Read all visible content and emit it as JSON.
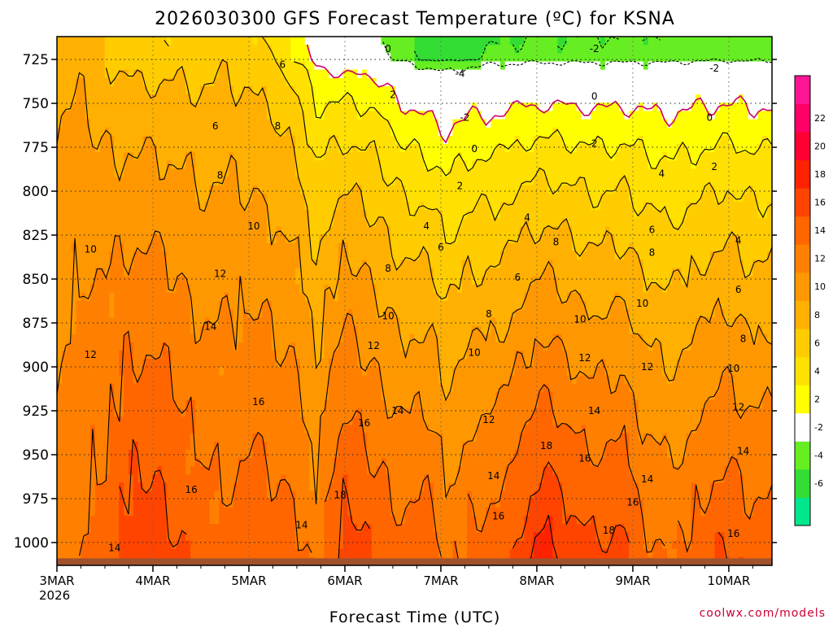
{
  "chart_data": {
    "type": "heatmap",
    "subtype": "filled-contour time-pressure cross-section",
    "title": "2026030300 GFS Forecast Temperature (ºC) for KSNA",
    "xlabel": "Forecast Time (UTC)",
    "ylabel": "",
    "x_ticks": [
      "3MAR",
      "4MAR",
      "5MAR",
      "6MAR",
      "7MAR",
      "8MAR",
      "9MAR",
      "10MAR"
    ],
    "x_tick_year": "2026",
    "x_range_days": [
      0,
      7.45
    ],
    "y_ticks": [
      725,
      750,
      775,
      800,
      825,
      850,
      875,
      900,
      925,
      950,
      975,
      1000
    ],
    "y_range_hpa": [
      712,
      1013
    ],
    "y_inverted": true,
    "colorbar": {
      "levels": [
        -6,
        -4,
        -2,
        2,
        4,
        6,
        8,
        10,
        12,
        14,
        16,
        18,
        20,
        22
      ],
      "labels": [
        "22",
        "20",
        "18",
        "16",
        "14",
        "12",
        "10",
        "8",
        "6",
        "4",
        "2",
        "-2",
        "-4",
        "-6"
      ],
      "colors": [
        "#00e68c",
        "#33dd33",
        "#66ee22",
        "#ffffff",
        "#ffff00",
        "#ffe000",
        "#ffcc00",
        "#ffb000",
        "#ff9800",
        "#ff8000",
        "#ff6600",
        "#ff4400",
        "#ff2200",
        "#ff0033",
        "#ff0066",
        "#ff1493"
      ]
    },
    "surface_color": "#a0522d",
    "profiles": [
      {
        "t": 0.0,
        "t725": 9,
        "t1000": 13,
        "k": 1.3
      },
      {
        "t": 0.25,
        "t725": 9.5,
        "t1000": 14,
        "k": 1.3
      },
      {
        "t": 0.5,
        "t725": 8,
        "t1000": 15,
        "k": 1.3
      },
      {
        "t": 0.75,
        "t725": 7,
        "t1000": 17,
        "k": 1.4
      },
      {
        "t": 1.0,
        "t725": 6.5,
        "t1000": 17,
        "k": 1.5
      },
      {
        "t": 1.25,
        "t725": 7,
        "t1000": 16,
        "k": 1.4
      },
      {
        "t": 1.5,
        "t725": 7,
        "t1000": 15,
        "k": 1.3
      },
      {
        "t": 1.75,
        "t725": 7.5,
        "t1000": 14.5,
        "k": 1.3
      },
      {
        "t": 2.0,
        "t725": 7,
        "t1000": 15.5,
        "k": 1.3
      },
      {
        "t": 2.25,
        "t725": 6,
        "t1000": 15,
        "k": 1.4
      },
      {
        "t": 2.5,
        "t725": 4,
        "t1000": 14.5,
        "k": 1.6
      },
      {
        "t": 2.7,
        "t725": 1,
        "t1000": 13,
        "k": 1.7
      },
      {
        "t": 3.0,
        "t725": -0.5,
        "t1000": 17,
        "k": 1.8
      },
      {
        "t": 3.3,
        "t725": -0.5,
        "t1000": 15.5,
        "k": 1.8
      },
      {
        "t": 3.6,
        "t725": -3,
        "t1000": 14.5,
        "k": 1.9
      },
      {
        "t": 3.9,
        "t725": -4.5,
        "t1000": 15,
        "k": 1.9
      },
      {
        "t": 4.05,
        "t725": -5,
        "t1000": 13,
        "k": 2.0
      },
      {
        "t": 4.3,
        "t725": -4,
        "t1000": 14.5,
        "k": 1.9
      },
      {
        "t": 4.6,
        "t725": -3.5,
        "t1000": 15,
        "k": 1.8
      },
      {
        "t": 4.9,
        "t725": -3,
        "t1000": 17,
        "k": 1.7
      },
      {
        "t": 5.1,
        "t725": -3,
        "t1000": 18.5,
        "k": 1.6
      },
      {
        "t": 5.3,
        "t725": -3,
        "t1000": 17,
        "k": 1.7
      },
      {
        "t": 5.6,
        "t725": -3,
        "t1000": 16,
        "k": 1.7
      },
      {
        "t": 5.9,
        "t725": -3,
        "t1000": 16.5,
        "k": 1.7
      },
      {
        "t": 6.1,
        "t725": -3,
        "t1000": 14.5,
        "k": 1.8
      },
      {
        "t": 6.4,
        "t725": -3,
        "t1000": 13.5,
        "k": 1.8
      },
      {
        "t": 6.7,
        "t725": -2.5,
        "t1000": 15,
        "k": 1.7
      },
      {
        "t": 7.0,
        "t725": -2.5,
        "t1000": 16,
        "k": 1.7
      },
      {
        "t": 7.2,
        "t725": -2.5,
        "t1000": 15,
        "k": 1.7
      },
      {
        "t": 7.45,
        "t725": -2.5,
        "t1000": 15,
        "k": 1.7
      }
    ],
    "contour_labels": [
      {
        "text": "6",
        "t": 2.35,
        "p": 728
      },
      {
        "text": "6",
        "t": 1.65,
        "p": 763
      },
      {
        "text": "8",
        "t": 2.3,
        "p": 763
      },
      {
        "text": "8",
        "t": 1.7,
        "p": 791
      },
      {
        "text": "10",
        "t": 2.05,
        "p": 820
      },
      {
        "text": "10",
        "t": 0.35,
        "p": 833
      },
      {
        "text": "12",
        "t": 1.7,
        "p": 847
      },
      {
        "text": "12",
        "t": 0.35,
        "p": 893
      },
      {
        "text": "14",
        "t": 1.6,
        "p": 877
      },
      {
        "text": "16",
        "t": 2.1,
        "p": 920
      },
      {
        "text": "16",
        "t": 1.4,
        "p": 970
      },
      {
        "text": "14",
        "t": 0.6,
        "p": 1003
      },
      {
        "text": "14",
        "t": 2.55,
        "p": 990
      },
      {
        "text": "0",
        "t": 3.45,
        "p": 719
      },
      {
        "text": "-4",
        "t": 4.2,
        "p": 733
      },
      {
        "text": "-2",
        "t": 4.25,
        "p": 758
      },
      {
        "text": "-2",
        "t": 5.6,
        "p": 719
      },
      {
        "text": "-2",
        "t": 6.85,
        "p": 730
      },
      {
        "text": "0",
        "t": 5.6,
        "p": 746
      },
      {
        "text": "0",
        "t": 6.8,
        "p": 758
      },
      {
        "text": "0",
        "t": 4.35,
        "p": 776
      },
      {
        "text": "2",
        "t": 3.5,
        "p": 745
      },
      {
        "text": "2",
        "t": 4.2,
        "p": 797
      },
      {
        "text": "2",
        "t": 5.6,
        "p": 773
      },
      {
        "text": "2",
        "t": 6.85,
        "p": 786
      },
      {
        "text": "4",
        "t": 3.85,
        "p": 820
      },
      {
        "text": "4",
        "t": 4.9,
        "p": 815
      },
      {
        "text": "4",
        "t": 6.3,
        "p": 790
      },
      {
        "text": "4",
        "t": 7.1,
        "p": 828
      },
      {
        "text": "6",
        "t": 4.0,
        "p": 832
      },
      {
        "text": "6",
        "t": 4.8,
        "p": 849
      },
      {
        "text": "6",
        "t": 6.2,
        "p": 822
      },
      {
        "text": "6",
        "t": 7.1,
        "p": 856
      },
      {
        "text": "8",
        "t": 3.45,
        "p": 844
      },
      {
        "text": "8",
        "t": 4.5,
        "p": 870
      },
      {
        "text": "8",
        "t": 5.2,
        "p": 829
      },
      {
        "text": "8",
        "t": 6.2,
        "p": 835
      },
      {
        "text": "8",
        "t": 7.15,
        "p": 884
      },
      {
        "text": "10",
        "t": 3.45,
        "p": 871
      },
      {
        "text": "10",
        "t": 4.35,
        "p": 892
      },
      {
        "text": "10",
        "t": 5.45,
        "p": 873
      },
      {
        "text": "10",
        "t": 6.1,
        "p": 864
      },
      {
        "text": "10",
        "t": 7.05,
        "p": 901
      },
      {
        "text": "12",
        "t": 3.3,
        "p": 888
      },
      {
        "text": "12",
        "t": 4.5,
        "p": 930
      },
      {
        "text": "12",
        "t": 5.5,
        "p": 895
      },
      {
        "text": "12",
        "t": 6.15,
        "p": 900
      },
      {
        "text": "12",
        "t": 7.1,
        "p": 923
      },
      {
        "text": "14",
        "t": 3.55,
        "p": 925
      },
      {
        "text": "14",
        "t": 4.55,
        "p": 962
      },
      {
        "text": "14",
        "t": 5.6,
        "p": 925
      },
      {
        "text": "14",
        "t": 6.15,
        "p": 964
      },
      {
        "text": "14",
        "t": 7.15,
        "p": 948
      },
      {
        "text": "16",
        "t": 3.2,
        "p": 932
      },
      {
        "text": "16",
        "t": 5.5,
        "p": 952
      },
      {
        "text": "16",
        "t": 4.6,
        "p": 985
      },
      {
        "text": "16",
        "t": 6.0,
        "p": 977
      },
      {
        "text": "16",
        "t": 7.05,
        "p": 995
      },
      {
        "text": "18",
        "t": 5.1,
        "p": 945
      },
      {
        "text": "18",
        "t": 2.95,
        "p": 973
      },
      {
        "text": "18",
        "t": 5.75,
        "p": 993
      }
    ]
  },
  "footer": {
    "year_label": "2026",
    "credit": "coolwx.com/models"
  }
}
